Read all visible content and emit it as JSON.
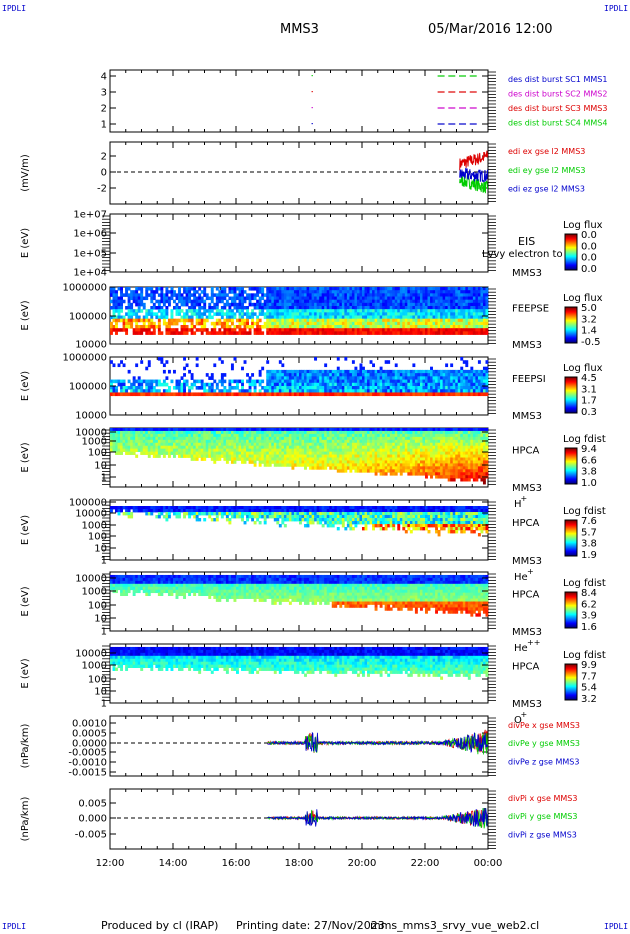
{
  "corner": {
    "tl": "IPDLI",
    "tr": "IPDLI",
    "bl": "IPDLI",
    "br": "IPDLI"
  },
  "header": {
    "spacecraft": "MMS3",
    "datetime": "05/Mar/2016 12:00"
  },
  "footer": {
    "produced": "Produced by cl (IRAP)",
    "printing": "Printing date: 27/Nov/2023",
    "script": "mms_mms3_srvy_vue_web2.cl"
  },
  "time_axis": {
    "ticks": [
      "12:00",
      "14:00",
      "16:00",
      "18:00",
      "20:00",
      "22:00",
      "00:00"
    ],
    "range_hours": [
      12,
      24
    ]
  },
  "colors": {
    "blue": "#0000cc",
    "red": "#dd0000",
    "green": "#00cc00",
    "magenta": "#cc00cc",
    "frame": "#000000"
  },
  "panels": {
    "des": {
      "yticks": [
        "4",
        "3",
        "2",
        "1"
      ],
      "legend": [
        {
          "text": "des dist burst SC1 MMS1",
          "color": "#0000cc"
        },
        {
          "text": "des dist burst SC2 MMS2",
          "color": "#cc00cc"
        },
        {
          "text": "des dist burst SC3 MMS3",
          "color": "#dd0000"
        },
        {
          "text": "des dist burst SC4 MMS4",
          "color": "#00cc00"
        }
      ]
    },
    "edi": {
      "ylabel": "(mV/m)",
      "yticks": [
        "2",
        "0",
        "-2"
      ],
      "legend": [
        {
          "text": "edi ex gse l2 MMS3",
          "color": "#dd0000"
        },
        {
          "text": "edi ey gse l2 MMS3",
          "color": "#00cc00"
        },
        {
          "text": "edi ez gse l2 MMS3",
          "color": "#0000cc"
        }
      ]
    },
    "eis": {
      "ylabel": "E (eV)",
      "yticks": [
        "1e+07",
        "1e+06",
        "1e+05",
        "1e+04"
      ],
      "instrument": "EIS",
      "craft": "MMS3",
      "overlay": "Lvvy electron to",
      "cbar_title": "Log flux",
      "cbar_ticks": [
        "0.0",
        "0.0",
        "0.0",
        "0.0"
      ]
    },
    "feepse": {
      "ylabel": "E (eV)",
      "yticks": [
        "1000000",
        "100000",
        "10000"
      ],
      "instrument": "FEEPSE",
      "craft": "MMS3",
      "cbar_title": "Log flux",
      "cbar_ticks": [
        "5.0",
        "3.2",
        "1.4",
        "-0.5"
      ]
    },
    "feepsi": {
      "ylabel": "E (eV)",
      "yticks": [
        "1000000",
        "100000",
        "10000"
      ],
      "instrument": "FEEPSI",
      "craft": "MMS3",
      "cbar_title": "Log flux",
      "cbar_ticks": [
        "4.5",
        "3.1",
        "1.7",
        "0.3"
      ]
    },
    "hpca_h": {
      "ylabel": "E (eV)",
      "yticks": [
        "10000",
        "1000",
        "100",
        "10",
        "1"
      ],
      "instrument": "HPCA",
      "craft": "MMS3",
      "species": "H",
      "charge": "+",
      "cbar_title": "Log fdist",
      "cbar_ticks": [
        "9.4",
        "6.6",
        "3.8",
        "1.0"
      ]
    },
    "hpca_he": {
      "ylabel": "E (eV)",
      "yticks": [
        "100000",
        "10000",
        "1000",
        "100",
        "10",
        "1"
      ],
      "instrument": "HPCA",
      "craft": "MMS3",
      "species": "He",
      "charge": "+",
      "cbar_title": "Log fdist",
      "cbar_ticks": [
        "7.6",
        "5.7",
        "3.8",
        "1.9"
      ]
    },
    "hpca_hepp": {
      "ylabel": "E (eV)",
      "yticks": [
        "10000",
        "1000",
        "100",
        "10",
        "1"
      ],
      "instrument": "HPCA",
      "craft": "MMS3",
      "species": "He",
      "charge": "++",
      "cbar_title": "Log fdist",
      "cbar_ticks": [
        "8.4",
        "6.2",
        "3.9",
        "1.6"
      ]
    },
    "hpca_o": {
      "ylabel": "E (eV)",
      "yticks": [
        "10000",
        "1000",
        "100",
        "10",
        "1"
      ],
      "instrument": "HPCA",
      "craft": "MMS3",
      "species": "O",
      "charge": "+",
      "cbar_title": "Log fdist",
      "cbar_ticks": [
        "9.9",
        "7.7",
        "5.4",
        "3.2"
      ]
    },
    "divpe": {
      "ylabel": "(nPa/km)",
      "yticks": [
        "0.0010",
        "0.0005",
        "0.0000",
        "-0.0005",
        "-0.0010",
        "-0.0015"
      ],
      "legend": [
        {
          "text": "divPe x gse MMS3",
          "color": "#dd0000"
        },
        {
          "text": "divPe y gse MMS3",
          "color": "#00cc00"
        },
        {
          "text": "divPe z gse MMS3",
          "color": "#0000cc"
        }
      ]
    },
    "divpi": {
      "ylabel": "(nPa/km)",
      "yticks": [
        "0.005",
        "0.000",
        "-0.005"
      ],
      "legend": [
        {
          "text": "divPi x gse MMS3",
          "color": "#dd0000"
        },
        {
          "text": "divPi y gse MMS3",
          "color": "#00cc00"
        },
        {
          "text": "divPi z gse MMS3",
          "color": "#0000cc"
        }
      ]
    }
  },
  "chart_data": [
    {
      "type": "line",
      "title": "",
      "xlabel": "",
      "ylabel": "",
      "series": [
        {
          "name": "des dist burst SC1 MMS1",
          "x": [
            18.4,
            22.4,
            23.4
          ],
          "values": [
            1,
            1,
            1
          ]
        },
        {
          "name": "des dist burst SC2 MMS2",
          "x": [
            18.4,
            22.4,
            23.4
          ],
          "values": [
            2,
            2,
            2
          ]
        },
        {
          "name": "des dist burst SC3 MMS3",
          "x": [
            18.4,
            22.4,
            23.4
          ],
          "values": [
            3,
            3,
            3
          ]
        },
        {
          "name": "des dist burst SC4 MMS4",
          "x": [
            18.4,
            22.4,
            23.4
          ],
          "values": [
            4,
            4,
            4
          ]
        }
      ],
      "xlim": [
        12,
        24
      ],
      "ylim": [
        0.5,
        4.5
      ]
    },
    {
      "type": "line",
      "ylabel": "(mV/m)",
      "ylim": [
        -3.5,
        3.5
      ],
      "series": [
        {
          "name": "edi ex gse l2 MMS3",
          "x": [
            23.1,
            23.4,
            23.7,
            24.0
          ],
          "values": [
            1.0,
            1.5,
            2.0,
            2.0
          ]
        },
        {
          "name": "edi ey gse l2 MMS3",
          "x": [
            23.1,
            23.4,
            23.7,
            24.0
          ],
          "values": [
            -1.0,
            -1.5,
            -2.0,
            -2.0
          ]
        },
        {
          "name": "edi ez gse l2 MMS3",
          "x": [
            23.1,
            23.4,
            23.7,
            24.0
          ],
          "values": [
            -0.3,
            -0.6,
            -0.8,
            -0.5
          ]
        }
      ]
    },
    {
      "type": "heatmap",
      "ylabel": "E (eV)",
      "series": [
        {
          "name": "FEEPSE",
          "log_scale": true,
          "cbar": [
            -0.5,
            5.0
          ]
        }
      ]
    },
    {
      "type": "heatmap",
      "ylabel": "E (eV)",
      "series": [
        {
          "name": "FEEPSI",
          "log_scale": true,
          "cbar": [
            0.3,
            4.5
          ]
        }
      ]
    },
    {
      "type": "heatmap",
      "ylabel": "E (eV)",
      "series": [
        {
          "name": "HPCA H+",
          "log_scale": true,
          "cbar": [
            1.0,
            9.4
          ]
        }
      ]
    },
    {
      "type": "heatmap",
      "ylabel": "E (eV)",
      "series": [
        {
          "name": "HPCA He+",
          "log_scale": true,
          "cbar": [
            1.9,
            7.6
          ]
        }
      ]
    },
    {
      "type": "heatmap",
      "ylabel": "E (eV)",
      "series": [
        {
          "name": "HPCA He++",
          "log_scale": true,
          "cbar": [
            1.6,
            8.4
          ]
        }
      ]
    },
    {
      "type": "heatmap",
      "ylabel": "E (eV)",
      "series": [
        {
          "name": "HPCA O+",
          "log_scale": true,
          "cbar": [
            3.2,
            9.9
          ]
        }
      ]
    },
    {
      "type": "line",
      "ylabel": "(nPa/km)",
      "ylim": [
        -0.0015,
        0.0012
      ],
      "series": [
        {
          "name": "divPe x gse MMS3",
          "x": [
            17,
            20,
            23,
            24
          ],
          "values": [
            0.0,
            0.0001,
            0.0008,
            -0.0004
          ]
        },
        {
          "name": "divPe y gse MMS3",
          "x": [
            17,
            20,
            23,
            24
          ],
          "values": [
            0.0,
            0.0002,
            -0.0003,
            0.0001
          ]
        },
        {
          "name": "divPe z gse MMS3",
          "x": [
            17,
            20,
            23,
            24
          ],
          "values": [
            0.0,
            -0.0001,
            0.0001,
            -0.0002
          ]
        }
      ]
    },
    {
      "type": "line",
      "ylabel": "(nPa/km)",
      "ylim": [
        -0.008,
        0.008
      ],
      "series": [
        {
          "name": "divPi x gse MMS3",
          "x": [
            17,
            20,
            23,
            24
          ],
          "values": [
            0.0,
            0.0008,
            0.004,
            -0.003
          ]
        },
        {
          "name": "divPi y gse MMS3",
          "x": [
            17,
            20,
            23,
            24
          ],
          "values": [
            0.0,
            0.001,
            0.002,
            0.001
          ]
        },
        {
          "name": "divPi z gse MMS3",
          "x": [
            17,
            20,
            23,
            24
          ],
          "values": [
            0.0,
            -0.0005,
            -0.002,
            -0.001
          ]
        }
      ]
    }
  ]
}
